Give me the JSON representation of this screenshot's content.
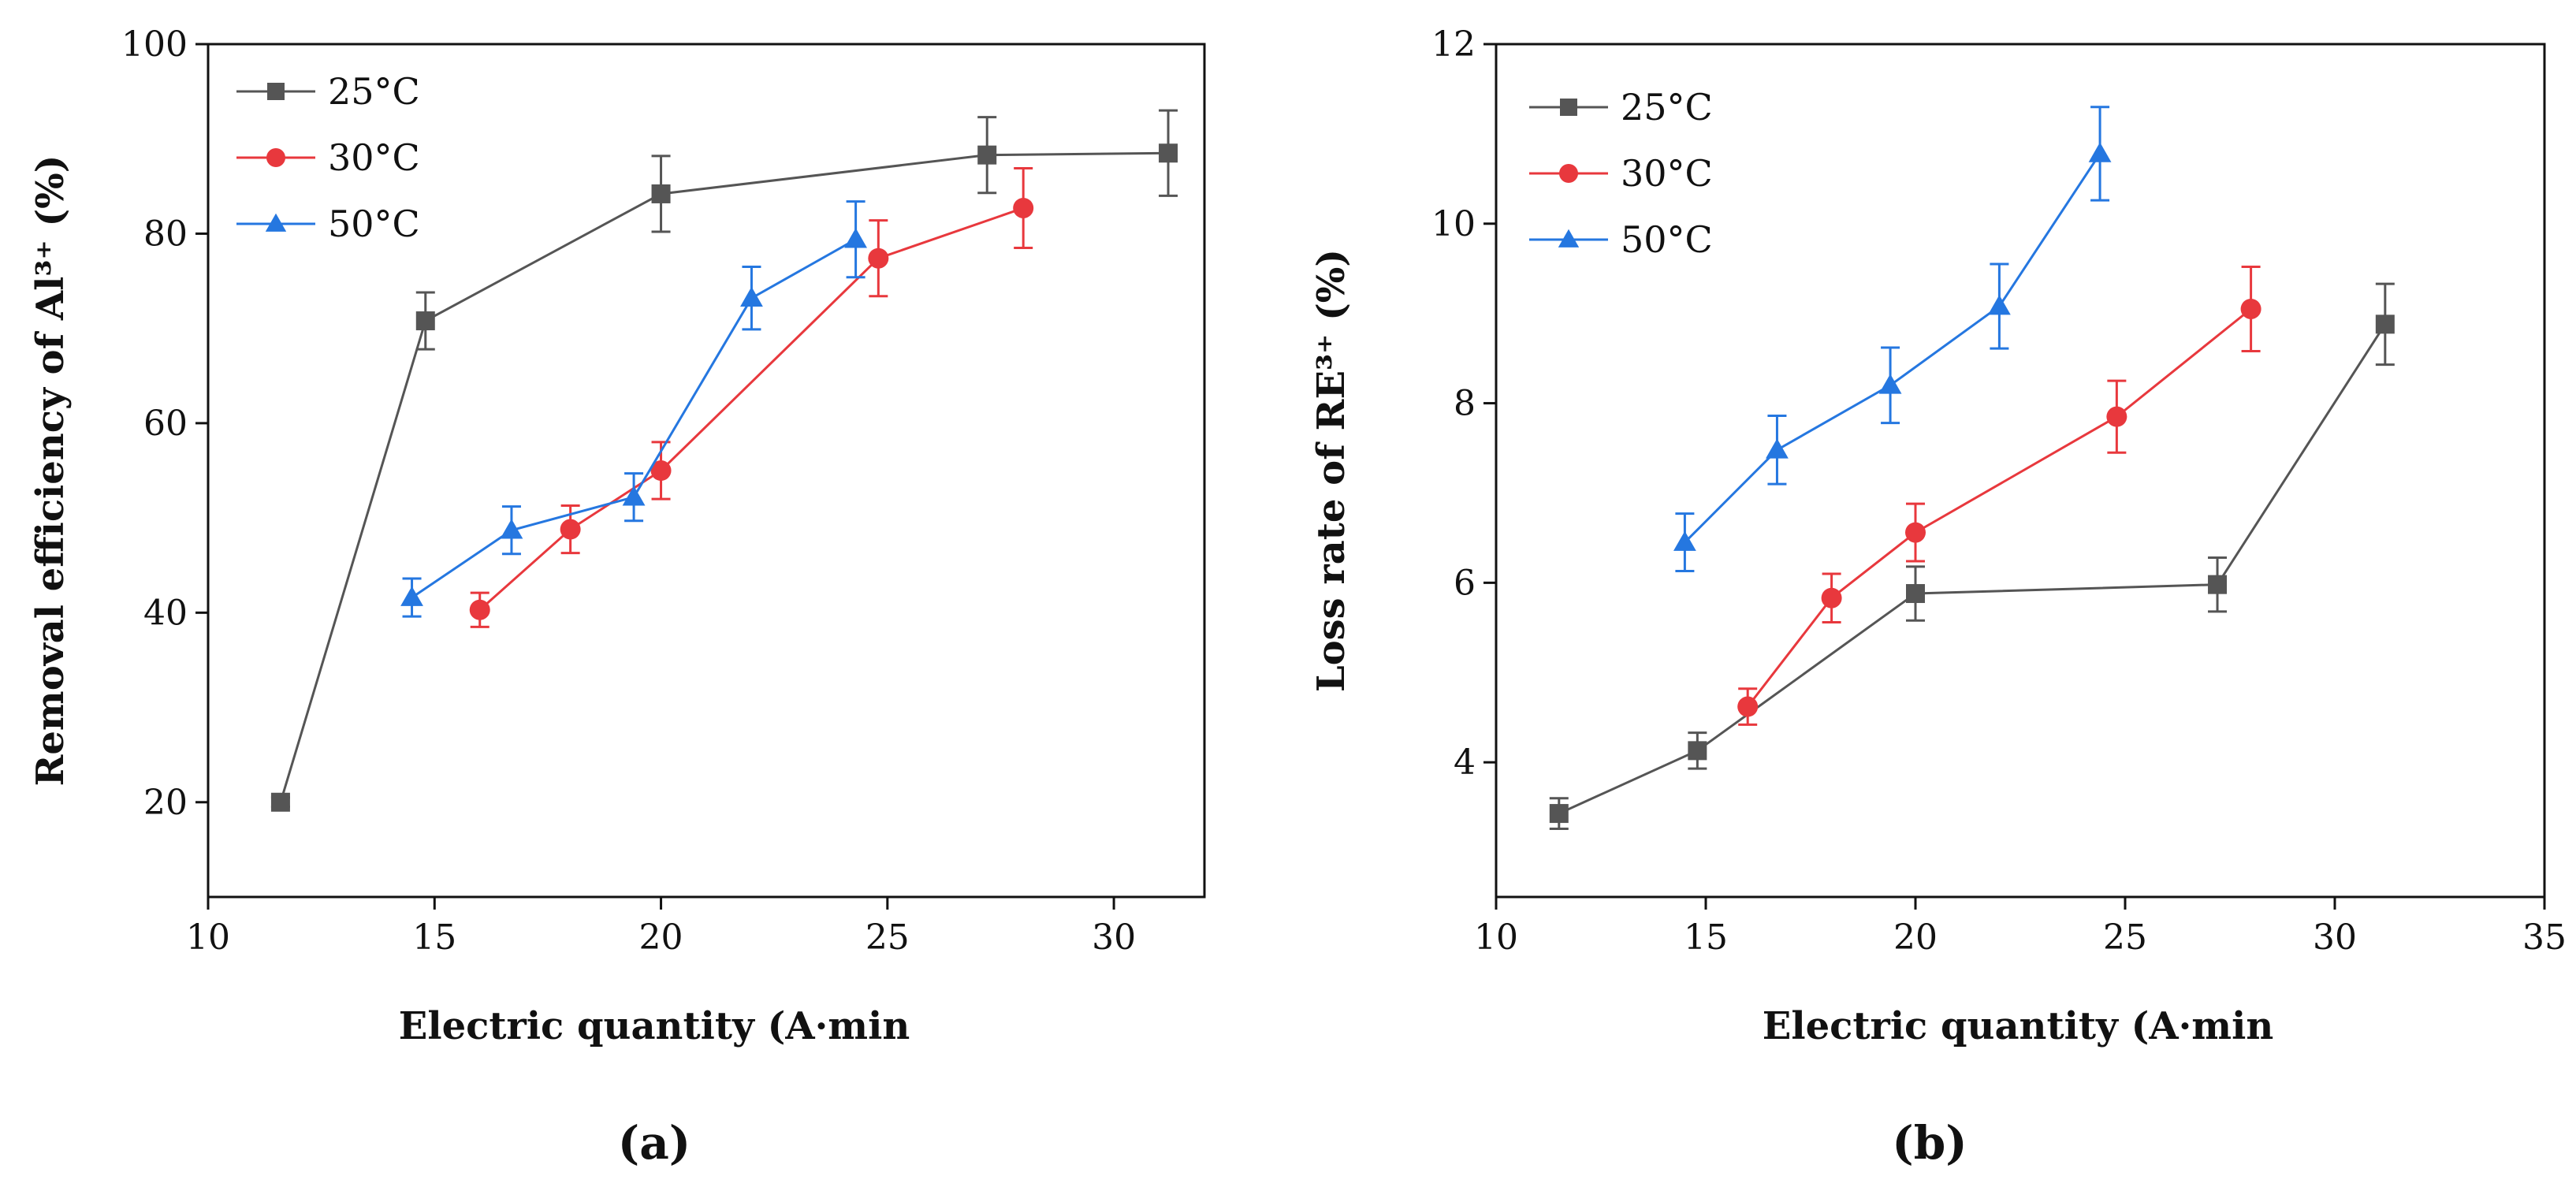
{
  "chart_data": [
    {
      "type": "line",
      "panel_label": "(a)",
      "xlabel": "Electric quantity (A·min",
      "ylabel": "Removal efficiency of Al³⁺ (%)",
      "xlim": [
        10,
        32
      ],
      "ylim": [
        10,
        100
      ],
      "xticks": [
        10,
        15,
        20,
        25,
        30
      ],
      "xtick_labels": [
        "10",
        "15",
        "20",
        "25",
        "30"
      ],
      "yticks": [
        20,
        40,
        60,
        80,
        100
      ],
      "ytick_labels": [
        "20",
        "40",
        "60",
        "80",
        "100"
      ],
      "legend_position": "top-left",
      "series": [
        {
          "name": "25°C",
          "color": "#555555",
          "marker": "square",
          "x": [
            11.6,
            14.8,
            20.0,
            27.2,
            31.2
          ],
          "y": [
            20.0,
            70.8,
            84.2,
            88.3,
            88.5
          ],
          "err": [
            0.5,
            3.0,
            4.0,
            4.0,
            4.5
          ]
        },
        {
          "name": "30°C",
          "color": "#e8383d",
          "marker": "circle",
          "x": [
            16.0,
            18.0,
            20.0,
            24.8,
            28.0
          ],
          "y": [
            40.3,
            48.8,
            55.0,
            77.4,
            82.7
          ],
          "err": [
            1.8,
            2.5,
            3.0,
            4.0,
            4.2
          ]
        },
        {
          "name": "50°C",
          "color": "#2577e0",
          "marker": "triangle",
          "x": [
            14.5,
            16.7,
            19.4,
            22.0,
            24.3
          ],
          "y": [
            41.6,
            48.7,
            52.2,
            73.2,
            79.4
          ],
          "err": [
            2.0,
            2.5,
            2.5,
            3.3,
            4.0
          ]
        }
      ]
    },
    {
      "type": "line",
      "panel_label": "(b)",
      "xlabel": "Electric quantity (A·min",
      "ylabel": "Loss rate of RE³⁺ (%)",
      "xlim": [
        10,
        35
      ],
      "ylim": [
        2.5,
        12
      ],
      "xticks": [
        10,
        15,
        20,
        25,
        30,
        35
      ],
      "xtick_labels": [
        "10",
        "15",
        "20",
        "25",
        "30",
        "35"
      ],
      "yticks": [
        4,
        6,
        8,
        10,
        12
      ],
      "ytick_labels": [
        "4",
        "6",
        "8",
        "10",
        "12"
      ],
      "legend_position": "top-left",
      "series": [
        {
          "name": "25°C",
          "color": "#555555",
          "marker": "square",
          "x": [
            11.5,
            14.8,
            20.0,
            27.2,
            31.2
          ],
          "y": [
            3.43,
            4.13,
            5.88,
            5.98,
            8.88
          ],
          "err": [
            0.17,
            0.2,
            0.3,
            0.3,
            0.45
          ]
        },
        {
          "name": "30°C",
          "color": "#e8383d",
          "marker": "circle",
          "x": [
            16.0,
            18.0,
            20.0,
            24.8,
            28.0
          ],
          "y": [
            4.62,
            5.83,
            6.56,
            7.85,
            9.05
          ],
          "err": [
            0.2,
            0.27,
            0.32,
            0.4,
            0.47
          ]
        },
        {
          "name": "50°C",
          "color": "#2577e0",
          "marker": "triangle",
          "x": [
            14.5,
            16.7,
            19.4,
            22.0,
            24.4
          ],
          "y": [
            6.45,
            7.48,
            8.2,
            9.08,
            10.78
          ],
          "err": [
            0.32,
            0.38,
            0.42,
            0.47,
            0.52
          ]
        }
      ]
    }
  ]
}
